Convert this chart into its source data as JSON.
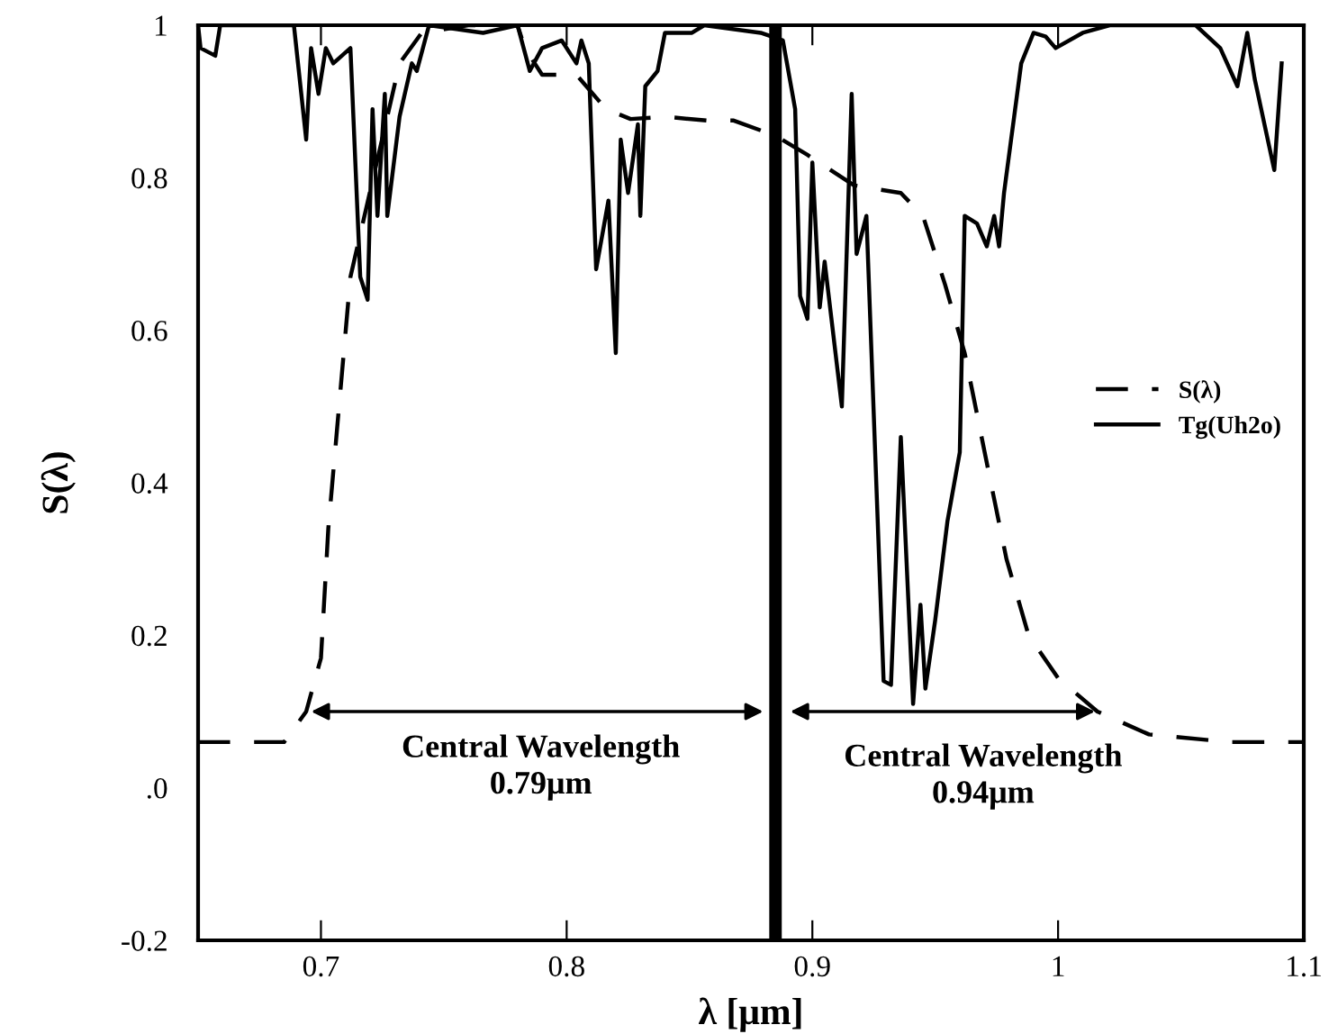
{
  "chart_data": {
    "type": "line",
    "xlabel": "λ [μm]",
    "ylabel": "S(λ)",
    "xlim": [
      0.65,
      1.1
    ],
    "ylim": [
      -0.2,
      1
    ],
    "xticks": [
      0.7,
      0.8,
      0.9,
      1,
      1.1
    ],
    "yticks": [
      -0.2,
      {
        "value": 0,
        "label": ".0"
      },
      0.2,
      0.4,
      0.6,
      0.8,
      1
    ],
    "legend": "right",
    "grid": false,
    "series": [
      {
        "name": "S(λ)",
        "color": "#000000",
        "line_style": "dashed",
        "x": [
          0.65,
          0.685,
          0.694,
          0.7,
          0.703,
          0.712,
          0.732,
          0.741,
          0.76,
          0.78,
          0.783,
          0.79,
          0.804,
          0.816,
          0.826,
          0.84,
          0.857,
          0.868,
          0.885,
          0.898,
          0.917,
          0.936,
          0.945,
          0.954,
          0.962,
          0.972,
          0.979,
          0.988,
          1.0,
          1.016,
          1.037,
          1.07,
          1.1
        ],
        "values": [
          0.06,
          0.06,
          0.1,
          0.17,
          0.34,
          0.67,
          0.95,
          0.99,
          1.0,
          1.0,
          0.97,
          0.935,
          0.935,
          0.89,
          0.877,
          0.88,
          0.875,
          0.875,
          0.855,
          0.83,
          0.79,
          0.78,
          0.75,
          0.66,
          0.57,
          0.41,
          0.3,
          0.2,
          0.144,
          0.1,
          0.07,
          0.06,
          0.06
        ]
      },
      {
        "name": "Tg(Uh2o)",
        "color": "#000000",
        "line_style": "solid",
        "x": [
          0.65,
          0.651,
          0.657,
          0.659,
          0.689,
          0.694,
          0.696,
          0.699,
          0.702,
          0.705,
          0.712,
          0.714,
          0.716,
          0.719,
          0.721,
          0.723,
          0.726,
          0.727,
          0.732,
          0.737,
          0.739,
          0.744,
          0.766,
          0.78,
          0.785,
          0.79,
          0.798,
          0.804,
          0.806,
          0.809,
          0.812,
          0.817,
          0.82,
          0.822,
          0.825,
          0.829,
          0.83,
          0.832,
          0.837,
          0.84,
          0.851,
          0.856,
          0.879,
          0.888,
          0.893,
          0.895,
          0.898,
          0.9,
          0.903,
          0.905,
          0.912,
          0.916,
          0.918,
          0.922,
          0.929,
          0.932,
          0.936,
          0.941,
          0.944,
          0.946,
          0.95,
          0.955,
          0.96,
          0.962,
          0.967,
          0.971,
          0.974,
          0.976,
          0.978,
          0.985,
          0.99,
          0.995,
          0.999,
          1.01,
          1.021,
          1.056,
          1.066,
          1.073,
          1.077,
          1.08,
          1.088,
          1.091
        ],
        "values": [
          1.0,
          0.97,
          0.96,
          1.0,
          1.0,
          0.85,
          0.97,
          0.91,
          0.97,
          0.95,
          0.97,
          0.82,
          0.67,
          0.64,
          0.89,
          0.75,
          0.91,
          0.75,
          0.88,
          0.95,
          0.94,
          1.0,
          0.99,
          1.0,
          0.94,
          0.97,
          0.98,
          0.95,
          0.98,
          0.95,
          0.68,
          0.77,
          0.57,
          0.85,
          0.78,
          0.87,
          0.75,
          0.92,
          0.94,
          0.99,
          0.99,
          1.0,
          0.99,
          0.98,
          0.89,
          0.645,
          0.615,
          0.82,
          0.63,
          0.69,
          0.5,
          0.91,
          0.7,
          0.75,
          0.14,
          0.135,
          0.46,
          0.11,
          0.24,
          0.13,
          0.22,
          0.35,
          0.44,
          0.75,
          0.74,
          0.71,
          0.75,
          0.71,
          0.78,
          0.95,
          0.99,
          0.985,
          0.97,
          0.99,
          1.0,
          1.0,
          0.97,
          0.92,
          0.99,
          0.93,
          0.81,
          0.95
        ]
      }
    ],
    "ref_lines": [
      {
        "axis": "x",
        "value": 0.885,
        "color": "#000000"
      }
    ],
    "annotations": [
      "Central Wavelength\n0.79μm",
      "Central Wavelength\n0.94μm"
    ]
  }
}
